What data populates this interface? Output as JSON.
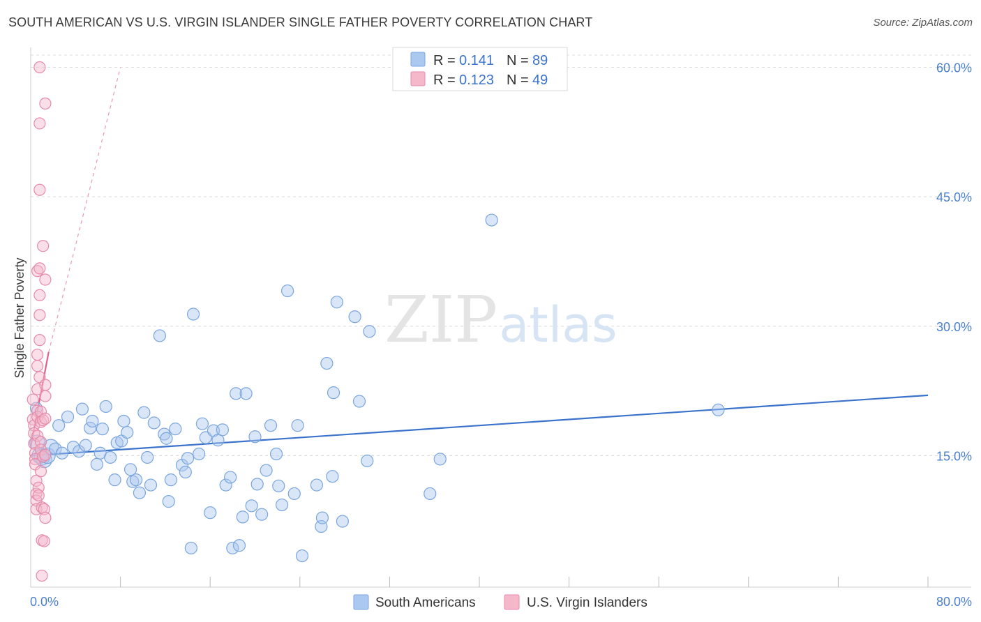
{
  "title": "SOUTH AMERICAN VS U.S. VIRGIN ISLANDER SINGLE FATHER POVERTY CORRELATION CHART",
  "source": "Source: ZipAtlas.com",
  "watermark": {
    "zip": "ZIP",
    "atlas": "atlas"
  },
  "colors": {
    "blue": "#3b73cc",
    "blue_fill": "#aac8f0",
    "pink": "#e0608a",
    "pink_fill": "#f5b8cb",
    "tick": "#4a7fcf"
  },
  "legend": {
    "r_label": "R =",
    "n_label": "N =",
    "rows": [
      {
        "r": "0.141",
        "n": "89"
      },
      {
        "r": "0.123",
        "n": "49"
      }
    ]
  },
  "chart_data": {
    "type": "scatter",
    "title": "SOUTH AMERICAN VS U.S. VIRGIN ISLANDER SINGLE FATHER POVERTY CORRELATION CHART",
    "ylabel": "Single Father Poverty",
    "xlabel": "",
    "xlim": [
      0,
      80
    ],
    "ylim": [
      0,
      62
    ],
    "x_tick_labels": [
      "0.0%",
      "80.0%"
    ],
    "y_ticks": [
      15,
      30,
      45,
      60
    ],
    "y_tick_labels": [
      "15.0%",
      "30.0%",
      "45.0%",
      "60.0%"
    ],
    "grid": true,
    "series": [
      {
        "name": "South Americans",
        "R": 0.141,
        "N": 89,
        "trend": {
          "x": [
            0,
            80
          ],
          "y": [
            15.0,
            22.0
          ],
          "style": "solid"
        },
        "points": [
          [
            0.5,
            20.5
          ],
          [
            0.6,
            16.5
          ],
          [
            0.8,
            15.0
          ],
          [
            1.0,
            14.8
          ],
          [
            1.2,
            14.5
          ],
          [
            1.5,
            15.0
          ],
          [
            1.8,
            16.0
          ],
          [
            2.2,
            15.8
          ],
          [
            2.5,
            18.5
          ],
          [
            2.8,
            15.3
          ],
          [
            3.3,
            19.5
          ],
          [
            3.8,
            16.0
          ],
          [
            4.3,
            15.5
          ],
          [
            4.6,
            20.4
          ],
          [
            4.9,
            16.2
          ],
          [
            5.3,
            18.2
          ],
          [
            5.5,
            19.0
          ],
          [
            5.9,
            14.0
          ],
          [
            6.2,
            15.3
          ],
          [
            6.4,
            18.1
          ],
          [
            6.7,
            20.7
          ],
          [
            7.1,
            14.8
          ],
          [
            7.5,
            12.2
          ],
          [
            7.7,
            16.5
          ],
          [
            8.1,
            16.7
          ],
          [
            8.3,
            19.0
          ],
          [
            8.6,
            17.7
          ],
          [
            8.9,
            13.4
          ],
          [
            9.1,
            12.0
          ],
          [
            9.4,
            12.2
          ],
          [
            9.7,
            10.7
          ],
          [
            10.1,
            20.0
          ],
          [
            10.4,
            14.8
          ],
          [
            10.7,
            11.6
          ],
          [
            11.0,
            18.8
          ],
          [
            11.5,
            28.9
          ],
          [
            11.9,
            17.5
          ],
          [
            12.1,
            17.0
          ],
          [
            12.3,
            9.7
          ],
          [
            12.5,
            12.2
          ],
          [
            12.9,
            18.1
          ],
          [
            13.5,
            13.9
          ],
          [
            13.8,
            13.1
          ],
          [
            14.0,
            14.7
          ],
          [
            14.3,
            4.3
          ],
          [
            14.5,
            31.4
          ],
          [
            15.0,
            15.2
          ],
          [
            15.3,
            18.7
          ],
          [
            15.6,
            17.1
          ],
          [
            16.0,
            8.4
          ],
          [
            16.3,
            17.9
          ],
          [
            16.7,
            16.8
          ],
          [
            17.1,
            18.0
          ],
          [
            17.4,
            11.6
          ],
          [
            17.8,
            12.5
          ],
          [
            18.0,
            4.3
          ],
          [
            18.3,
            22.2
          ],
          [
            18.6,
            4.6
          ],
          [
            18.9,
            7.9
          ],
          [
            19.2,
            22.2
          ],
          [
            19.7,
            9.2
          ],
          [
            20.0,
            17.2
          ],
          [
            20.2,
            11.7
          ],
          [
            20.6,
            8.2
          ],
          [
            21.0,
            13.3
          ],
          [
            21.4,
            18.5
          ],
          [
            21.9,
            15.2
          ],
          [
            22.1,
            11.5
          ],
          [
            22.4,
            9.3
          ],
          [
            22.9,
            34.1
          ],
          [
            23.5,
            10.6
          ],
          [
            23.8,
            18.5
          ],
          [
            24.2,
            3.4
          ],
          [
            25.5,
            11.6
          ],
          [
            25.9,
            6.8
          ],
          [
            26.0,
            7.8
          ],
          [
            26.4,
            25.7
          ],
          [
            26.9,
            12.6
          ],
          [
            27.0,
            22.3
          ],
          [
            27.3,
            32.8
          ],
          [
            27.8,
            7.4
          ],
          [
            28.9,
            31.1
          ],
          [
            29.3,
            21.3
          ],
          [
            30.0,
            14.4
          ],
          [
            30.2,
            29.4
          ],
          [
            35.6,
            10.6
          ],
          [
            36.5,
            14.6
          ],
          [
            41.1,
            42.3
          ],
          [
            61.3,
            20.3
          ]
        ]
      },
      {
        "name": "U.S. Virgin Islanders",
        "R": 0.123,
        "N": 49,
        "trend": {
          "x": [
            0,
            1.6
          ],
          "y": [
            16.0,
            27.0
          ],
          "style": "solid",
          "extended": {
            "x": [
              1.6,
              8.0
            ],
            "y": [
              27.0,
              60.0
            ],
            "style": "dashed"
          }
        },
        "points": [
          [
            0.2,
            21.5
          ],
          [
            0.2,
            19.2
          ],
          [
            0.3,
            18.5
          ],
          [
            0.3,
            17.6
          ],
          [
            0.3,
            16.4
          ],
          [
            0.4,
            15.3
          ],
          [
            0.4,
            14.6
          ],
          [
            0.4,
            14.0
          ],
          [
            0.5,
            12.1
          ],
          [
            0.5,
            10.6
          ],
          [
            0.5,
            9.8
          ],
          [
            0.5,
            8.8
          ],
          [
            0.6,
            36.4
          ],
          [
            0.6,
            26.7
          ],
          [
            0.6,
            25.4
          ],
          [
            0.6,
            22.7
          ],
          [
            0.6,
            20.2
          ],
          [
            0.6,
            19.5
          ],
          [
            0.6,
            17.3
          ],
          [
            0.7,
            11.3
          ],
          [
            0.7,
            10.4
          ],
          [
            0.8,
            60.0
          ],
          [
            0.8,
            53.5
          ],
          [
            0.8,
            45.8
          ],
          [
            0.8,
            36.7
          ],
          [
            0.8,
            33.6
          ],
          [
            0.8,
            31.3
          ],
          [
            0.8,
            28.4
          ],
          [
            0.8,
            24.1
          ],
          [
            0.9,
            20.1
          ],
          [
            0.9,
            18.9
          ],
          [
            0.9,
            16.6
          ],
          [
            0.9,
            15.7
          ],
          [
            0.9,
            13.2
          ],
          [
            1.0,
            9.0
          ],
          [
            1.0,
            5.2
          ],
          [
            1.0,
            1.1
          ],
          [
            1.1,
            39.3
          ],
          [
            1.1,
            19.1
          ],
          [
            1.1,
            14.9
          ],
          [
            1.2,
            8.8
          ],
          [
            1.2,
            5.1
          ],
          [
            1.3,
            55.8
          ],
          [
            1.3,
            35.4
          ],
          [
            1.3,
            23.2
          ],
          [
            1.3,
            21.9
          ],
          [
            1.3,
            19.3
          ],
          [
            1.3,
            15.1
          ],
          [
            1.3,
            7.8
          ]
        ]
      }
    ]
  }
}
